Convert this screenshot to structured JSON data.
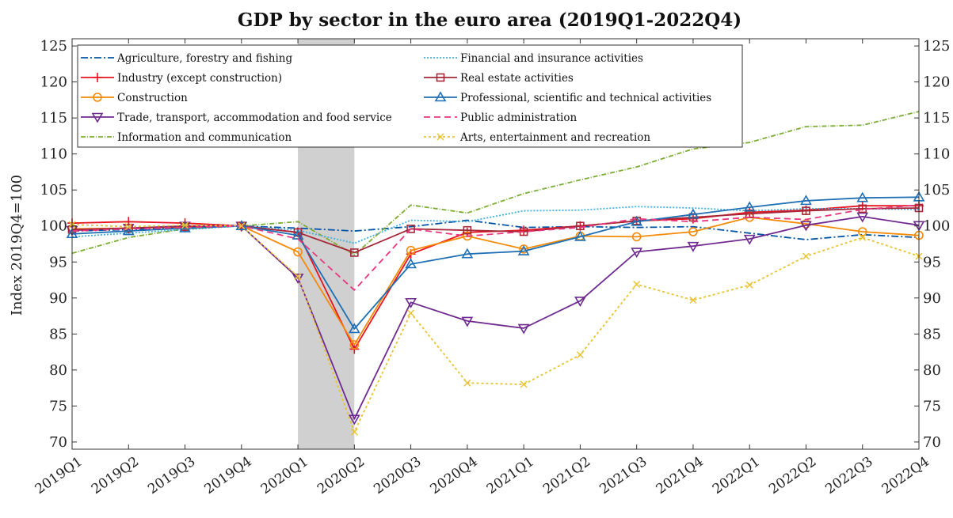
{
  "chart_data": {
    "type": "line",
    "title": "GDP by sector in the euro area (2019Q1-2022Q4)",
    "xlabel": "",
    "ylabel": "Index 2019Q4=100",
    "ylim": [
      69,
      126
    ],
    "yticks": [
      70,
      75,
      80,
      85,
      90,
      95,
      100,
      105,
      110,
      115,
      120,
      125
    ],
    "grid": false,
    "legend_position": "top, two columns",
    "shaded_region": [
      "2020Q1",
      "2020Q2"
    ],
    "categories": [
      "2019Q1",
      "2019Q2",
      "2019Q3",
      "2019Q4",
      "2020Q1",
      "2020Q2",
      "2020Q3",
      "2020Q4",
      "2021Q1",
      "2021Q2",
      "2021Q3",
      "2021Q4",
      "2022Q1",
      "2022Q2",
      "2022Q3",
      "2022Q4"
    ],
    "series": [
      {
        "name": "Agriculture, forestry and fishing",
        "color": "#0055a5",
        "dash": "9,3,2,3",
        "marker": "none",
        "values": [
          99.3,
          99.5,
          99.8,
          100.0,
          99.7,
          99.3,
          99.9,
          100.8,
          99.8,
          99.9,
          99.8,
          99.9,
          99.0,
          98.1,
          98.8,
          98.4
        ]
      },
      {
        "name": "Industry (except construction)",
        "color": "#e8141f",
        "dash": "",
        "marker": "plus",
        "values": [
          100.4,
          100.6,
          100.4,
          100.0,
          99.1,
          82.9,
          96.1,
          99.1,
          99.4,
          100.0,
          100.7,
          101.0,
          101.9,
          102.2,
          102.8,
          102.8
        ]
      },
      {
        "name": "Construction",
        "color": "#f58a07",
        "dash": "",
        "marker": "circle",
        "values": [
          99.6,
          99.7,
          99.9,
          100.0,
          96.4,
          83.5,
          96.6,
          98.6,
          96.8,
          98.6,
          98.5,
          99.2,
          101.2,
          100.3,
          99.2,
          98.7
        ]
      },
      {
        "name": "Trade, transport, accommodation and food service",
        "color": "#6f2a8f",
        "dash": "",
        "marker": "triangle-down",
        "values": [
          99.4,
          99.7,
          100.0,
          100.0,
          92.8,
          73.2,
          89.4,
          86.8,
          85.8,
          89.6,
          96.4,
          97.2,
          98.2,
          100.1,
          101.3,
          100.1
        ]
      },
      {
        "name": "Information and communication",
        "color": "#7cad32",
        "dash": "6,2,1,2",
        "marker": "none",
        "values": [
          96.2,
          98.4,
          99.6,
          100.0,
          100.6,
          96.0,
          102.9,
          101.8,
          104.5,
          106.4,
          108.2,
          110.7,
          111.6,
          113.8,
          114.0,
          115.9
        ]
      },
      {
        "name": "Financial and insurance activities",
        "color": "#3fb0e0",
        "dash": "2,2",
        "marker": "none",
        "values": [
          98.5,
          99.0,
          99.5,
          100.0,
          99.4,
          97.6,
          100.8,
          100.6,
          102.1,
          102.2,
          102.7,
          102.5,
          102.1,
          102.4,
          102.4,
          102.3
        ]
      },
      {
        "name": "Real estate activities",
        "color": "#a52739",
        "dash": "",
        "marker": "square",
        "values": [
          99.5,
          99.7,
          99.9,
          100.0,
          99.1,
          96.3,
          99.6,
          99.4,
          99.2,
          100.0,
          100.7,
          101.2,
          101.7,
          102.1,
          102.4,
          102.5
        ]
      },
      {
        "name": "Professional, scientific and technical activities",
        "color": "#1f6fb5",
        "dash": "",
        "marker": "triangle-up",
        "values": [
          98.9,
          99.3,
          99.7,
          100.0,
          98.7,
          85.7,
          94.7,
          96.1,
          96.5,
          98.5,
          100.6,
          101.6,
          102.6,
          103.5,
          103.9,
          104.0
        ]
      },
      {
        "name": "Public administration",
        "color": "#e8377f",
        "dash": "8,5",
        "marker": "none",
        "values": [
          99.3,
          99.6,
          99.8,
          100.0,
          98.2,
          91.1,
          99.6,
          98.6,
          99.2,
          99.8,
          101.0,
          100.6,
          101.2,
          100.9,
          102.3,
          102.9
        ]
      },
      {
        "name": "Arts, entertainment and recreation",
        "color": "#e8c32e",
        "dash": "3,3",
        "marker": "x",
        "values": [
          100.2,
          99.9,
          100.1,
          100.0,
          93.0,
          71.4,
          87.9,
          78.2,
          78.0,
          82.1,
          91.9,
          89.7,
          91.8,
          95.8,
          98.4,
          95.8
        ]
      }
    ]
  }
}
